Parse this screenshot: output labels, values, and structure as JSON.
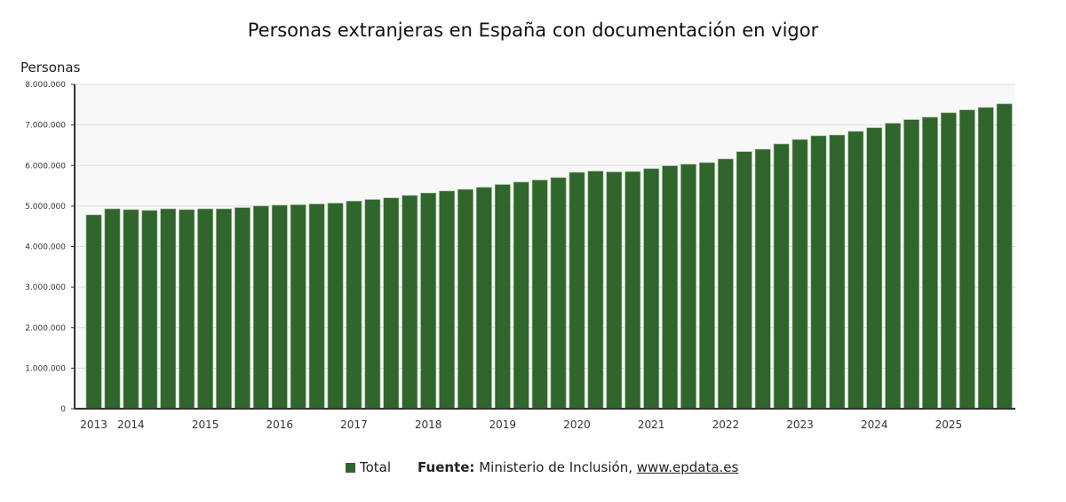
{
  "chart_data": {
    "type": "bar",
    "title": "Personas extranjeras en España con documentación en vigor",
    "ylabel": "Personas",
    "xlabel": "",
    "ylim": [
      0,
      8000000
    ],
    "yticks": [
      "0",
      "1.000.000",
      "2.000.000",
      "3.000.000",
      "4.000.000",
      "5.000.000",
      "6.000.000",
      "7.000.000",
      "8.000.000"
    ],
    "xtick_labels": [
      {
        "label": "2013",
        "bar": 0
      },
      {
        "label": "2014",
        "bar": 2
      },
      {
        "label": "2015",
        "bar": 6
      },
      {
        "label": "2016",
        "bar": 10
      },
      {
        "label": "2017",
        "bar": 14
      },
      {
        "label": "2018",
        "bar": 18
      },
      {
        "label": "2019",
        "bar": 22
      },
      {
        "label": "2020",
        "bar": 26
      },
      {
        "label": "2021",
        "bar": 30
      },
      {
        "label": "2022",
        "bar": 34
      },
      {
        "label": "2023",
        "bar": 38
      },
      {
        "label": "2024",
        "bar": 42
      },
      {
        "label": "2025",
        "bar": 46
      }
    ],
    "grid": true,
    "legend_position": "bottom",
    "series": [
      {
        "name": "Total",
        "color": "#30652b",
        "values": [
          4780000,
          4930000,
          4910000,
          4890000,
          4930000,
          4910000,
          4930000,
          4930000,
          4960000,
          5000000,
          5020000,
          5030000,
          5050000,
          5070000,
          5120000,
          5160000,
          5200000,
          5260000,
          5320000,
          5370000,
          5410000,
          5460000,
          5530000,
          5590000,
          5640000,
          5700000,
          5830000,
          5860000,
          5840000,
          5850000,
          5920000,
          5990000,
          6030000,
          6070000,
          6160000,
          6340000,
          6400000,
          6530000,
          6640000,
          6730000,
          6750000,
          6840000,
          6930000,
          7040000,
          7130000,
          7190000,
          7300000,
          7370000,
          7430000,
          7520000
        ]
      }
    ]
  },
  "source": {
    "label": "Fuente:",
    "text": "Ministerio de Inclusión,",
    "link": "www.epdata.es"
  }
}
